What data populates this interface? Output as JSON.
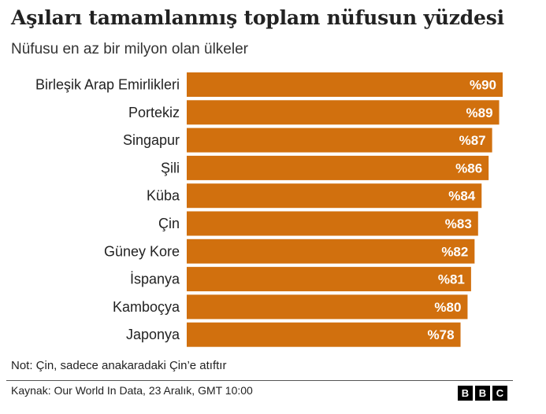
{
  "header": {
    "title": "Aşıları tamamlanmış toplam nüfusun yüzdesi",
    "subtitle": "Nüfusu en az bir milyon olan ülkeler"
  },
  "footer": {
    "note": "Not: Çin, sadece anakaradaki Çin’e atıftır",
    "source": "Kaynak: Our World In Data, 23 Aralık, GMT 10:00",
    "logo_letters": [
      "B",
      "B",
      "C"
    ]
  },
  "chart_data": {
    "type": "bar",
    "orientation": "horizontal",
    "categories": [
      "Birleşik Arap Emirlikleri",
      "Portekiz",
      "Singapur",
      "Şili",
      "Küba",
      "Çin",
      "Güney Kore",
      "İspanya",
      "Kamboçya",
      "Japonya"
    ],
    "values": [
      90,
      89,
      87,
      86,
      84,
      83,
      82,
      81,
      80,
      78
    ],
    "value_labels": [
      "%90",
      "%89",
      "%87",
      "%86",
      "%84",
      "%83",
      "%82",
      "%81",
      "%80",
      "%78"
    ],
    "bar_color": "#d1700e",
    "label_color": "#ffffff",
    "xlim": [
      0,
      90
    ]
  }
}
